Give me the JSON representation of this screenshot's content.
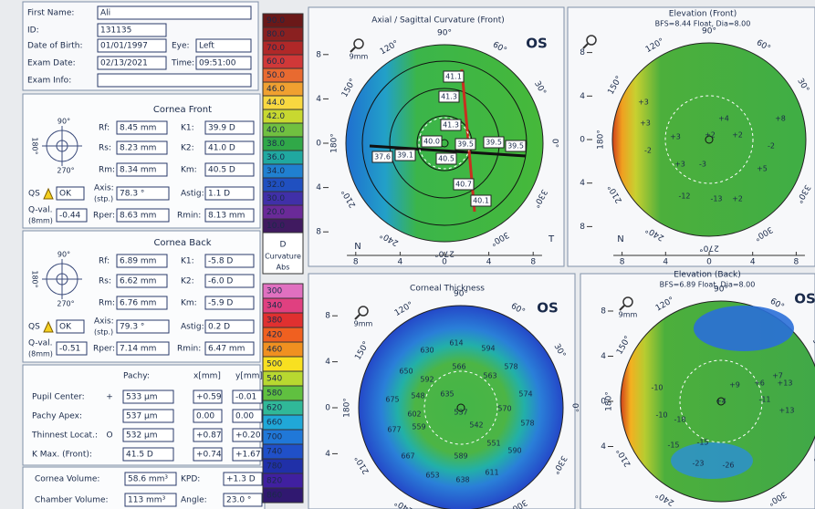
{
  "patient": {
    "first_name": {
      "label": "First Name:",
      "value": "Ali"
    },
    "id": {
      "label": "ID:",
      "value": "131135"
    },
    "dob": {
      "label": "Date of Birth:",
      "value": "01/01/1997"
    },
    "eye": {
      "label": "Eye:",
      "value": "Left"
    },
    "exam_date": {
      "label": "Exam Date:",
      "value": "02/13/2021"
    },
    "time": {
      "label": "Time:",
      "value": "09:51:00"
    },
    "exam_info": {
      "label": "Exam Info:"
    }
  },
  "cornea_front": {
    "title": "Cornea Front",
    "compass": [
      "90°",
      "180°",
      "270°"
    ],
    "rf": {
      "label": "Rf:",
      "value": "8.45 mm"
    },
    "k1": {
      "label": "K1:",
      "value": "39.9 D"
    },
    "rs": {
      "label": "Rs:",
      "value": "8.23 mm"
    },
    "k2": {
      "label": "K2:",
      "value": "41.0 D"
    },
    "rm": {
      "label": "Rm:",
      "value": "8.34 mm"
    },
    "km": {
      "label": "Km:",
      "value": "40.5 D"
    },
    "qs": {
      "label": "QS",
      "value": "OK"
    },
    "axis": {
      "label": "Axis:",
      "sublabel": "(stp.)",
      "value": "78.3 °"
    },
    "astig": {
      "label": "Astig:",
      "value": "1.1 D"
    },
    "q_val": {
      "label": "Q-val.",
      "sublabel": "(8mm)",
      "value": "-0.44"
    },
    "rper": {
      "label": "Rper:",
      "value": "8.63 mm"
    },
    "rmin": {
      "label": "Rmin:",
      "value": "8.13 mm"
    }
  },
  "cornea_back": {
    "title": "Cornea Back",
    "compass": [
      "90°",
      "180°",
      "270°"
    ],
    "rf": {
      "label": "Rf:",
      "value": "6.89 mm"
    },
    "k1": {
      "label": "K1:",
      "value": "-5.8 D"
    },
    "rs": {
      "label": "Rs:",
      "value": "6.62 mm"
    },
    "k2": {
      "label": "K2:",
      "value": "-6.0 D"
    },
    "rm": {
      "label": "Rm:",
      "value": "6.76 mm"
    },
    "km": {
      "label": "Km:",
      "value": "-5.9 D"
    },
    "qs": {
      "label": "QS",
      "value": "OK"
    },
    "axis": {
      "label": "Axis:",
      "sublabel": "(stp.)",
      "value": "79.3 °"
    },
    "astig": {
      "label": "Astig:",
      "value": "0.2 D"
    },
    "q_val": {
      "label": "Q-val.",
      "sublabel": "(8mm)",
      "value": "-0.51"
    },
    "rper": {
      "label": "Rper:",
      "value": "7.14 mm"
    },
    "rmin": {
      "label": "Rmin:",
      "value": "6.47 mm"
    }
  },
  "pachy": {
    "header": [
      "Pachy:",
      "x[mm]",
      "y[mm]"
    ],
    "rows": [
      {
        "label": "Pupil Center:",
        "symbol": "+",
        "value": "533 µm",
        "x": "+0.59",
        "y": "-0.01"
      },
      {
        "label": "Pachy Apex:",
        "value": "537 µm",
        "x": "0.00",
        "y": "0.00"
      },
      {
        "label": "Thinnest Locat.:",
        "symbol": "O",
        "value": "532 µm",
        "x": "+0.87",
        "y": "+0.20"
      },
      {
        "label": "K Max. (Front):",
        "value": "41.5 D",
        "x": "+0.74",
        "y": "+1.67"
      }
    ]
  },
  "volumes": {
    "cornea_volume": {
      "label": "Cornea Volume:",
      "value": "58.6 mm³"
    },
    "kpd": {
      "label": "KPD:",
      "value": "+1.3 D"
    },
    "chamber_volume": {
      "label": "Chamber Volume:",
      "value": "113 mm³"
    },
    "angle": {
      "label": "Angle:",
      "value": "23.0 °"
    }
  },
  "scales": {
    "curvature": {
      "labels": [
        "90.0",
        "80.0",
        "70.0",
        "60.0",
        "50.0",
        "46.0",
        "44.0",
        "42.0",
        "40.0",
        "38.0",
        "36.0",
        "34.0",
        "32.0",
        "30.0",
        "20.0",
        "10.0"
      ],
      "unit": "D",
      "name": "Curvature",
      "mode": "Abs"
    },
    "thickness": {
      "labels": [
        "300",
        "340",
        "380",
        "420",
        "460",
        "500",
        "540",
        "580",
        "620",
        "660",
        "700",
        "740",
        "780",
        "820",
        "860"
      ]
    }
  },
  "maps": [
    {
      "title": "Axial / Sagittal Curvature (Front)",
      "eye": "OS",
      "zoom": "9mm",
      "angles": [
        "90°",
        "60°",
        "30°",
        "0°",
        "330°",
        "300°",
        "270°",
        "240°",
        "210°",
        "180°",
        "150°",
        "120°"
      ],
      "y_axis": [
        "8",
        "4",
        "0",
        "4",
        "8"
      ],
      "x_axis": [
        "8",
        "4",
        "0",
        "4",
        "8"
      ],
      "nasal": "N",
      "temporal": "T",
      "values": [
        "41.1",
        "41.3",
        "41.3",
        "40.0",
        "39.5",
        "39.5",
        "39.5",
        "37.6",
        "39.1",
        "40.5",
        "40.7",
        "40.1"
      ]
    },
    {
      "title": "Elevation (Front)",
      "subtitle": "BFS=8.44 Float, Dia=8.00",
      "angles": [
        "90°",
        "60°",
        "30°",
        "0°",
        "330°",
        "300°",
        "270°",
        "240°",
        "210°",
        "180°",
        "150°",
        "120°"
      ],
      "y_axis": [
        "8",
        "4",
        "0",
        "4",
        "8"
      ],
      "x_axis": [
        "8",
        "4",
        "0",
        "4",
        "8"
      ],
      "nasal": "N",
      "values": [
        "+3",
        "+3",
        "-2",
        "+3",
        "+4",
        "+2",
        "+2",
        "+3",
        "-3",
        "+5",
        "-2",
        "+8",
        "-12",
        "-13",
        "+2"
      ]
    },
    {
      "title": "Corneal Thickness",
      "eye": "OS",
      "zoom": "9mm",
      "angles": [
        "90°",
        "60°",
        "30°",
        "0°",
        "330°",
        "300°",
        "270°",
        "240°",
        "210°",
        "180°",
        "150°",
        "120°"
      ],
      "y_axis": [
        "8",
        "4",
        "0",
        "4"
      ],
      "values": [
        "630",
        "614",
        "594",
        "650",
        "592",
        "566",
        "563",
        "578",
        "675",
        "548",
        "635",
        "574",
        "602",
        "537",
        "570",
        "677",
        "559",
        "542",
        "578",
        "667",
        "589",
        "551",
        "590",
        "653",
        "638",
        "611"
      ]
    },
    {
      "title": "Elevation (Back)",
      "subtitle": "BFS=6.89 Float, Dia=8.00",
      "eye": "OS",
      "zoom": "9mm",
      "angles": [
        "90°",
        "60°",
        "30°",
        "0°",
        "330°",
        "300°",
        "270°",
        "240°",
        "210°",
        "180°",
        "150°",
        "120°"
      ],
      "y_axis": [
        "8",
        "4",
        "0",
        "4"
      ],
      "values": [
        "-10",
        "+9",
        "+6",
        "+7",
        "+4",
        "-11",
        "+13",
        "-10",
        "-18",
        "-15",
        "-15",
        "-23",
        "-26",
        "+13"
      ]
    }
  ]
}
